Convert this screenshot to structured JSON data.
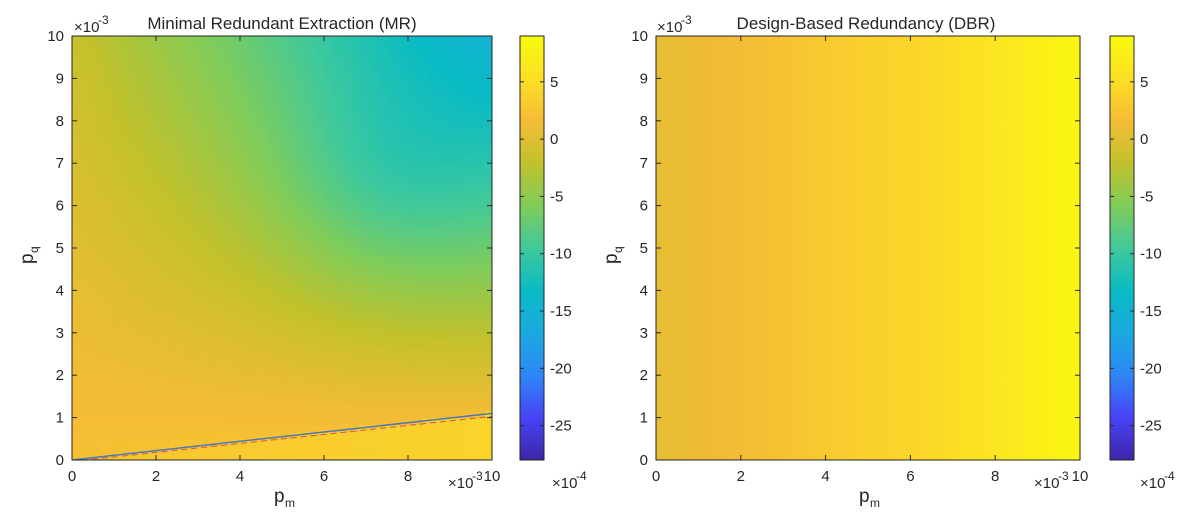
{
  "colors": {
    "colormap": [
      "#3e26a8",
      "#4743f7",
      "#2e87f7",
      "#1aa9df",
      "#09bbc4",
      "#40c99b",
      "#81cc59",
      "#c1c12c",
      "#f5bc35",
      "#fde025",
      "#f9fb0e"
    ],
    "mr_line_blue": "#4a78b8",
    "mr_line_red": "#d9534f"
  },
  "chart_data": [
    {
      "type": "heatmap",
      "title": "Minimal Redundant Extraction (MR)",
      "xlabel": "p",
      "xlabel_sub": "m",
      "ylabel": "p",
      "ylabel_sub": "q",
      "x_exponent": "×10",
      "x_exponent_power": "-3",
      "y_exponent": "×10",
      "y_exponent_power": "-3",
      "xlim": [
        0,
        10
      ],
      "ylim": [
        0,
        10
      ],
      "xticks": [
        0,
        2,
        4,
        6,
        8,
        10
      ],
      "yticks": [
        0,
        1,
        2,
        3,
        4,
        5,
        6,
        7,
        8,
        9,
        10
      ],
      "colorbar": {
        "limits": [
          -28,
          9
        ],
        "ticks": [
          5,
          0,
          -5,
          -10,
          -15,
          -20,
          -25
        ],
        "exponent": "×10",
        "exponent_power": "-4"
      },
      "corner_values": {
        "x0_y0": 2.0,
        "x10_y0": 3.5,
        "x0_y10": -1.5,
        "x10_y10": -15.0
      },
      "boundary_line": {
        "x": [
          0,
          10
        ],
        "y": [
          0,
          1.1
        ]
      }
    },
    {
      "type": "heatmap",
      "title": "Design-Based Redundancy (DBR)",
      "xlabel": "p",
      "xlabel_sub": "m",
      "ylabel": "p",
      "ylabel_sub": "q",
      "x_exponent": "×10",
      "x_exponent_power": "-3",
      "y_exponent": "×10",
      "y_exponent_power": "-3",
      "xlim": [
        0,
        10
      ],
      "ylim": [
        0,
        10
      ],
      "xticks": [
        0,
        2,
        4,
        6,
        8,
        10
      ],
      "yticks": [
        0,
        1,
        2,
        3,
        4,
        5,
        6,
        7,
        8,
        9,
        10
      ],
      "colorbar": {
        "limits": [
          -28,
          9
        ],
        "ticks": [
          5,
          0,
          -5,
          -10,
          -15,
          -20,
          -25
        ],
        "exponent": "×10",
        "exponent_power": "-4"
      },
      "value_profile": {
        "x": [
          0,
          2,
          4,
          6,
          8,
          10
        ],
        "value": [
          0.5,
          1.5,
          3.0,
          4.2,
          6.0,
          8.5
        ]
      }
    }
  ]
}
